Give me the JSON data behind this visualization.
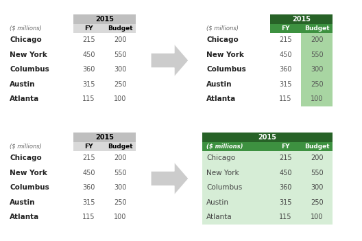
{
  "cities": [
    "Chicago",
    "New York",
    "Columbus",
    "Austin",
    "Atlanta"
  ],
  "fy": [
    215,
    450,
    360,
    315,
    115
  ],
  "budget": [
    200,
    550,
    300,
    250,
    100
  ],
  "header_year": "2015",
  "col_labels": [
    "($ millions)",
    "FY",
    "Budget"
  ],
  "before_header_bg": "#BFBFBF",
  "before_subheader_bg": "#D9D9D9",
  "green_dark": "#276227",
  "green_mid": "#3D9140",
  "green_light": "#A8D5A2",
  "green_pale": "#D6EDD6",
  "arrow_color": "#CCCCCC",
  "bg_color": "#FFFFFF",
  "figw": 5.28,
  "figh": 3.51,
  "dpi": 100
}
